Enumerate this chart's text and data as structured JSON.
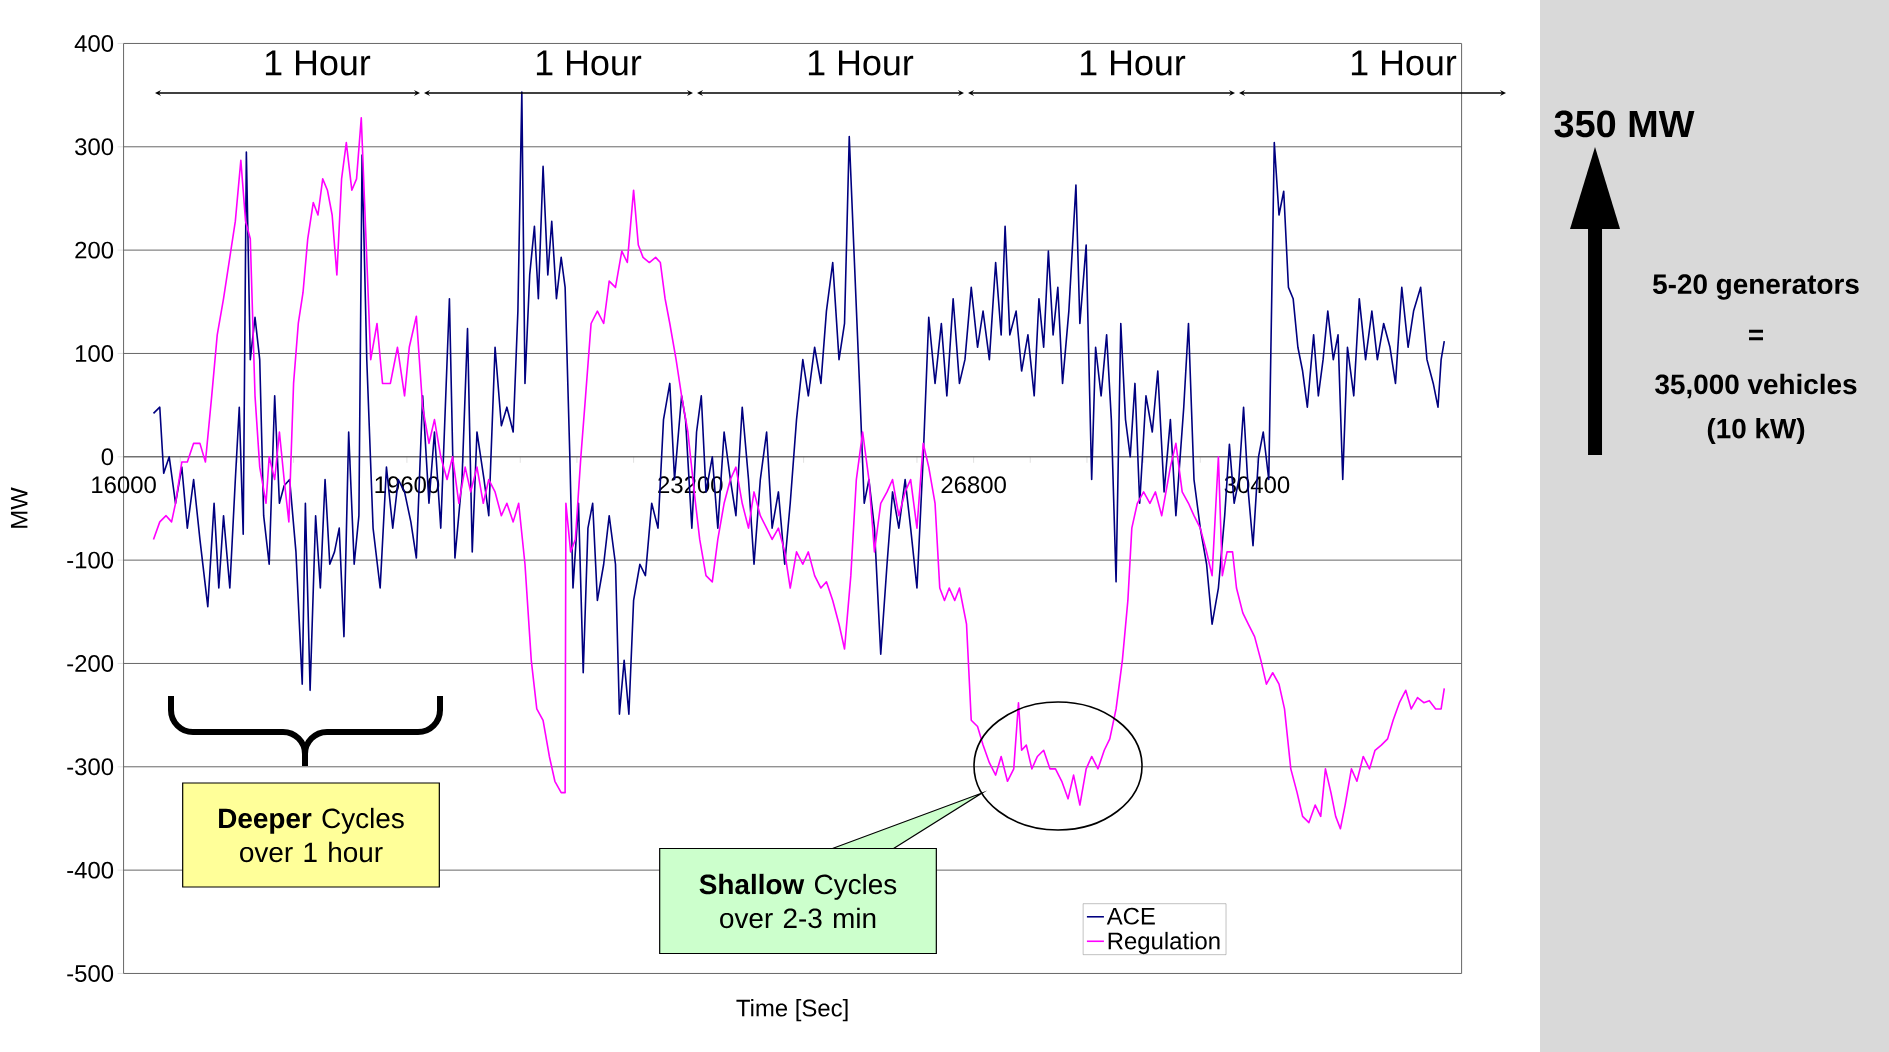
{
  "chart_data": {
    "type": "line",
    "xlabel": "Time [Sec]",
    "ylabel": "MW",
    "xlim": [
      16000,
      33000
    ],
    "ylim": [
      -500,
      400
    ],
    "xticks": [
      16000,
      19600,
      23200,
      26800,
      30400
    ],
    "yticks": [
      -500,
      -400,
      -300,
      -200,
      -100,
      0,
      100,
      200,
      300,
      400
    ],
    "grid": "y",
    "legend": "bottom right",
    "series": [
      {
        "name": "ACE",
        "color": "#000080",
        "x": [
          16380,
          16460,
          16510,
          16580,
          16660,
          16740,
          16810,
          16890,
          16970,
          17070,
          17150,
          17210,
          17270,
          17350,
          17420,
          17470,
          17520,
          17560,
          17610,
          17670,
          17730,
          17780,
          17850,
          17920,
          17980,
          18040,
          18110,
          18190,
          18270,
          18310,
          18370,
          18440,
          18500,
          18560,
          18620,
          18680,
          18740,
          18800,
          18860,
          18930,
          18990,
          19030,
          19090,
          19170,
          19260,
          19340,
          19420,
          19490,
          19570,
          19650,
          19720,
          19800,
          19880,
          19950,
          20030,
          20140,
          20210,
          20300,
          20370,
          20430,
          20490,
          20580,
          20640,
          20720,
          20800,
          20870,
          20950,
          21010,
          21060,
          21100,
          21160,
          21220,
          21270,
          21330,
          21390,
          21440,
          21500,
          21560,
          21610,
          21670,
          21710,
          21780,
          21840,
          21900,
          21960,
          22020,
          22100,
          22170,
          22250,
          22300,
          22360,
          22420,
          22480,
          22560,
          22630,
          22710,
          22790,
          22860,
          22940,
          23000,
          23090,
          23140,
          23220,
          23280,
          23340,
          23400,
          23480,
          23550,
          23630,
          23710,
          23780,
          23860,
          23940,
          24010,
          24090,
          24170,
          24240,
          24320,
          24400,
          24470,
          24550,
          24630,
          24700,
          24780,
          24860,
          24930,
          25010,
          25090,
          25160,
          25220,
          25280,
          25350,
          25410,
          25470,
          25540,
          25620,
          25700,
          25770,
          25850,
          25930,
          26000,
          26080,
          26160,
          26230,
          26310,
          26390,
          26460,
          26540,
          26620,
          26690,
          26770,
          26850,
          26920,
          27000,
          27080,
          27150,
          27200,
          27260,
          27340,
          27410,
          27490,
          27570,
          27630,
          27690,
          27750,
          27810,
          27870,
          27930,
          28010,
          28100,
          28150,
          28230,
          28300,
          28350,
          28420,
          28490,
          28550,
          28610,
          28670,
          28730,
          28790,
          28850,
          28910,
          28990,
          29070,
          29140,
          29220,
          29300,
          29370,
          29470,
          29530,
          29600,
          29680,
          29760,
          29830,
          29910,
          29990,
          30050,
          30110,
          30170,
          30230,
          30290,
          30350,
          30420,
          30480,
          30550,
          30620,
          30680,
          30740,
          30800,
          30860,
          30920,
          30980,
          31040,
          31120,
          31180,
          31240,
          31300,
          31370,
          31430,
          31490,
          31550,
          31630,
          31700,
          31780,
          31860,
          31930,
          32010,
          32090,
          32160,
          32240,
          32320,
          32390,
          32480,
          32560,
          32640,
          32700,
          32740,
          32780
        ],
        "values": [
          42,
          48,
          -16,
          0,
          -45,
          -10,
          -69,
          -22,
          -80,
          -145,
          -45,
          -127,
          -57,
          -127,
          -22,
          48,
          -75,
          295,
          94,
          135,
          94,
          -57,
          -104,
          59,
          -45,
          -28,
          -22,
          -92,
          -220,
          -45,
          -226,
          -57,
          -127,
          -22,
          -104,
          -92,
          -69,
          -174,
          24,
          -104,
          -57,
          292,
          94,
          -69,
          -127,
          -10,
          -69,
          -22,
          -34,
          -63,
          -98,
          59,
          -45,
          24,
          -69,
          153,
          -98,
          -22,
          124,
          -92,
          24,
          -22,
          -57,
          106,
          30,
          48,
          24,
          141,
          353,
          71,
          176,
          223,
          153,
          281,
          176,
          228,
          153,
          193,
          164,
          0,
          -127,
          -45,
          -209,
          -69,
          -45,
          -139,
          -104,
          -57,
          -104,
          -249,
          -197,
          -249,
          -139,
          -104,
          -115,
          -45,
          -69,
          36,
          71,
          -22,
          59,
          36,
          -69,
          24,
          59,
          -34,
          0,
          -69,
          24,
          -22,
          -57,
          48,
          -22,
          -104,
          -22,
          24,
          -69,
          -34,
          -104,
          -45,
          36,
          94,
          59,
          106,
          71,
          141,
          188,
          94,
          129,
          310,
          199,
          71,
          -45,
          -22,
          -69,
          -191,
          -104,
          -34,
          -69,
          -22,
          -69,
          -127,
          0,
          135,
          71,
          129,
          59,
          153,
          71,
          94,
          164,
          106,
          141,
          94,
          188,
          118,
          223,
          118,
          141,
          83,
          118,
          59,
          153,
          106,
          199,
          118,
          164,
          71,
          141,
          263,
          129,
          205,
          -22,
          106,
          59,
          118,
          36,
          -121,
          129,
          36,
          0,
          71,
          -45,
          59,
          24,
          83,
          -34,
          36,
          -57,
          48,
          129,
          -22,
          -69,
          -104,
          -162,
          -127,
          -57,
          12,
          -45,
          -22,
          48,
          -34,
          -86,
          0,
          24,
          -22,
          304,
          234,
          257,
          164,
          153,
          106,
          83,
          48,
          118,
          59,
          94,
          141,
          94,
          118,
          -22,
          106,
          59,
          153,
          94,
          141,
          94,
          129,
          106,
          71,
          164,
          106,
          141,
          164,
          94,
          71,
          48,
          94,
          112
        ]
      },
      {
        "name": "Regulation",
        "color": "#ff00ff",
        "x": [
          16380,
          16460,
          16540,
          16610,
          16660,
          16740,
          16810,
          16890,
          16970,
          17040,
          17120,
          17190,
          17270,
          17350,
          17420,
          17490,
          17550,
          17610,
          17670,
          17730,
          17810,
          17850,
          17920,
          17980,
          18040,
          18100,
          18160,
          18220,
          18280,
          18340,
          18410,
          18470,
          18530,
          18590,
          18650,
          18710,
          18770,
          18830,
          18900,
          18960,
          19020,
          19080,
          19140,
          19220,
          19290,
          19390,
          19480,
          19570,
          19630,
          19720,
          19800,
          19880,
          19950,
          20030,
          20110,
          20180,
          20260,
          20340,
          20410,
          20490,
          20570,
          20640,
          20720,
          20800,
          20870,
          20950,
          21020,
          21100,
          21180,
          21250,
          21330,
          21410,
          21480,
          21560,
          21610,
          21620,
          21680,
          21740,
          21810,
          21870,
          21940,
          22020,
          22100,
          22170,
          22250,
          22330,
          22400,
          22480,
          22540,
          22600,
          22680,
          22760,
          22820,
          22880,
          22940,
          23020,
          23090,
          23170,
          23250,
          23320,
          23400,
          23480,
          23550,
          23630,
          23710,
          23780,
          23860,
          23940,
          24010,
          24090,
          24170,
          24240,
          24320,
          24400,
          24470,
          24550,
          24630,
          24700,
          24780,
          24860,
          24930,
          25010,
          25090,
          25160,
          25240,
          25310,
          25390,
          25470,
          25540,
          25620,
          25700,
          25770,
          25850,
          25930,
          26000,
          26080,
          26160,
          26230,
          26310,
          26370,
          26430,
          26490,
          26560,
          26620,
          26710,
          26770,
          26850,
          26920,
          27000,
          27080,
          27150,
          27230,
          27310,
          27370,
          27410,
          27470,
          27540,
          27610,
          27690,
          27770,
          27840,
          27920,
          28000,
          28070,
          28150,
          28230,
          28300,
          28380,
          28460,
          28530,
          28610,
          28690,
          28760,
          28810,
          28880,
          28960,
          29040,
          29110,
          29190,
          29300,
          29370,
          29450,
          29530,
          29600,
          29680,
          29760,
          29830,
          29910,
          29960,
          30020,
          30090,
          30140,
          30220,
          30290,
          30370,
          30450,
          30520,
          30600,
          30680,
          30750,
          30830,
          30910,
          30980,
          31060,
          31140,
          31210,
          31270,
          31340,
          31400,
          31460,
          31520,
          31600,
          31670,
          31750,
          31830,
          31900,
          31980,
          32060,
          32130,
          32210,
          32290,
          32360,
          32440,
          32520,
          32590,
          32670,
          32740,
          32780
        ],
        "values": [
          -80,
          -63,
          -57,
          -63,
          -45,
          -5,
          -5,
          13,
          13,
          -5,
          59,
          118,
          153,
          193,
          228,
          287,
          228,
          211,
          59,
          -10,
          -45,
          0,
          -22,
          24,
          -22,
          -63,
          71,
          129,
          159,
          211,
          246,
          234,
          269,
          258,
          234,
          176,
          269,
          304,
          258,
          269,
          328,
          211,
          94,
          129,
          71,
          71,
          106,
          59,
          106,
          136,
          48,
          13,
          36,
          0,
          -22,
          0,
          -45,
          -10,
          -34,
          -10,
          -45,
          -22,
          -34,
          -57,
          -45,
          -63,
          -45,
          -104,
          -197,
          -244,
          -255,
          -290,
          -314,
          -325,
          -325,
          -45,
          -92,
          -80,
          0,
          59,
          129,
          141,
          129,
          170,
          164,
          199,
          188,
          258,
          205,
          193,
          188,
          193,
          188,
          153,
          129,
          94,
          59,
          24,
          -34,
          -80,
          -115,
          -121,
          -80,
          -45,
          -22,
          -10,
          -45,
          -69,
          -34,
          -57,
          -69,
          -80,
          -69,
          -92,
          -127,
          -92,
          -104,
          -92,
          -115,
          -127,
          -121,
          -139,
          -162,
          -186,
          -115,
          -22,
          24,
          -22,
          -92,
          -45,
          -34,
          -22,
          -57,
          -34,
          -22,
          -69,
          13,
          -10,
          -45,
          -127,
          -139,
          -127,
          -139,
          -127,
          -162,
          -255,
          -261,
          -279,
          -296,
          -308,
          -290,
          -314,
          -302,
          -238,
          -284,
          -279,
          -302,
          -290,
          -284,
          -302,
          -302,
          -314,
          -331,
          -308,
          -337,
          -302,
          -290,
          -302,
          -284,
          -273,
          -244,
          -197,
          -139,
          -69,
          -45,
          -34,
          -45,
          -34,
          -57,
          -10,
          13,
          -34,
          -45,
          -57,
          -69,
          -92,
          -115,
          0,
          -115,
          -92,
          -92,
          -127,
          -151,
          -162,
          -174,
          -197,
          -220,
          -209,
          -220,
          -244,
          -302,
          -325,
          -348,
          -354,
          -337,
          -348,
          -302,
          -325,
          -348,
          -360,
          -337,
          -302,
          -314,
          -290,
          -302,
          -284,
          -279,
          -273,
          -255,
          -238,
          -226,
          -244,
          -233,
          -238,
          -236,
          -244,
          -244,
          -224
        ]
      }
    ],
    "annotations": [
      "1 Hour",
      "1 Hour",
      "1 Hour",
      "1 Hour",
      "1 Hour",
      "350 MW",
      "5-20 generators",
      "=",
      "35,000 vehicles",
      "(10 kW)",
      "**Deeper** Cycles over 1 hour",
      "**Shallow** Cycles over 2-3 min"
    ]
  }
}
